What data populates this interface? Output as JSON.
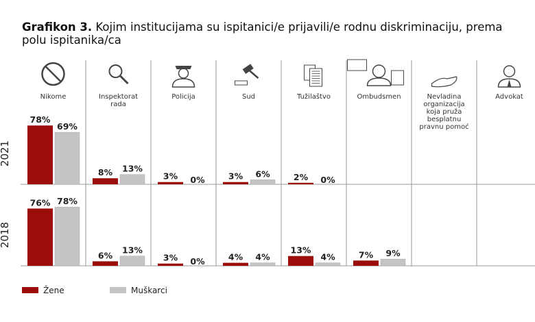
{
  "title": {
    "prefix": "Grafikon 3.",
    "line1": " Kojim institucijama su ispitanici/e prijavili/e rodnu diskriminaciju, prema",
    "line2": "polu ispitanika/ca"
  },
  "colors": {
    "zene": "#9b0d0b",
    "muskarci": "#c4c4c4",
    "grid": "#999999"
  },
  "chart_data": {
    "type": "bar",
    "categories": [
      {
        "label": [
          "Nikome"
        ],
        "icon": "no-sign-icon"
      },
      {
        "label": [
          "Inspektorat",
          "rada"
        ],
        "icon": "magnifier-icon"
      },
      {
        "label": [
          "Policija"
        ],
        "icon": "police-officer-icon"
      },
      {
        "label": [
          "Sud"
        ],
        "icon": "gavel-icon"
      },
      {
        "label": [
          "Tužilaštvo"
        ],
        "icon": "documents-icon"
      },
      {
        "label": [
          "Ombudsmen"
        ],
        "icon": "ombudsman-icon"
      },
      {
        "label": [
          "Nevladina",
          "organizacija",
          "koja pruža",
          "besplatnu",
          "pravnu pomoć"
        ],
        "icon": "helping-hand-icon"
      },
      {
        "label": [
          "Advokat"
        ],
        "icon": "lawyer-icon"
      }
    ],
    "panels": [
      {
        "year": "2021",
        "series": [
          {
            "name": "Žene",
            "values": [
              78,
              8,
              3,
              3,
              2,
              null,
              null,
              null
            ],
            "labels": [
              "78%",
              "8%",
              "3%",
              "3%",
              "2%",
              "",
              "",
              ""
            ]
          },
          {
            "name": "Muškarci",
            "values": [
              69,
              13,
              0,
              6,
              0,
              null,
              null,
              null
            ],
            "labels": [
              "69%",
              "13%",
              "0%",
              "6%",
              "0%",
              "",
              "",
              ""
            ]
          }
        ]
      },
      {
        "year": "2018",
        "series": [
          {
            "name": "Žene",
            "values": [
              76,
              6,
              3,
              4,
              13,
              7,
              null,
              null
            ],
            "labels": [
              "76%",
              "6%",
              "3%",
              "4%",
              "13%",
              "7%",
              "",
              ""
            ]
          },
          {
            "name": "Muškarci",
            "values": [
              78,
              13,
              0,
              4,
              4,
              9,
              null,
              null
            ],
            "labels": [
              "78%",
              "13%",
              "0%",
              "4%",
              "4%",
              "9%",
              "",
              ""
            ]
          }
        ]
      }
    ],
    "legend": {
      "position": "bottom-left",
      "items": [
        "Žene",
        "Muškarci"
      ]
    },
    "ylim": [
      0,
      100
    ]
  }
}
